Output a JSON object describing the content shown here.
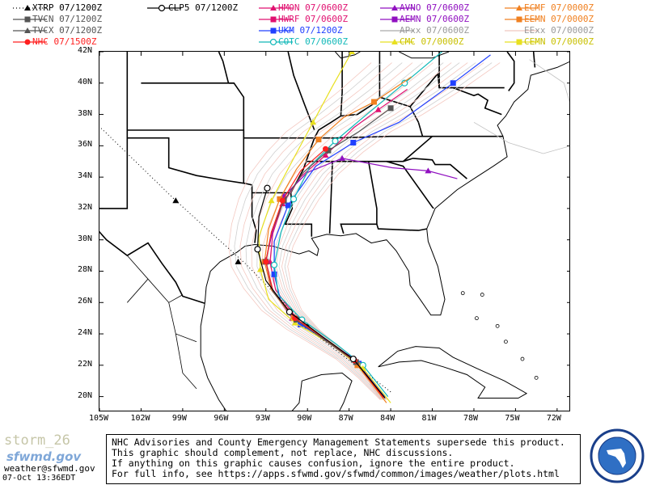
{
  "legend": [
    {
      "label": "XTRP 07/1200Z",
      "color": "#000000",
      "marker": "triangle",
      "line": "dotted"
    },
    {
      "label": "TVCN 07/1200Z",
      "color": "#555555",
      "marker": "square",
      "line": "solid"
    },
    {
      "label": "TVCX 07/1200Z",
      "color": "#555555",
      "marker": "triangle",
      "line": "solid"
    },
    {
      "label": "NHC 07/1500Z",
      "color": "#ff2020",
      "marker": "circle",
      "line": "solid"
    },
    {
      "label": "CLP5 07/1200Z",
      "color": "#000000",
      "marker": "circle-open",
      "line": "solid"
    },
    {
      "label": "HMON 07/0600Z",
      "color": "#e01070",
      "marker": "triangle",
      "line": "solid"
    },
    {
      "label": "HWRF 07/0600Z",
      "color": "#e01070",
      "marker": "square",
      "line": "solid"
    },
    {
      "label": "UKM 07/1200Z",
      "color": "#2040ff",
      "marker": "square",
      "line": "solid"
    },
    {
      "label": "COTC 07/0600Z",
      "color": "#10b8b8",
      "marker": "circle-open",
      "line": "solid"
    },
    {
      "label": "AVNO 07/0600Z",
      "color": "#9010c0",
      "marker": "triangle",
      "line": "solid"
    },
    {
      "label": "AEMN 07/0600Z",
      "color": "#9010c0",
      "marker": "square",
      "line": "solid"
    },
    {
      "label": "APxx 07/0600Z",
      "color": "#aaaaaa",
      "marker": "none",
      "line": "solid"
    },
    {
      "label": "CMC 07/0000Z",
      "color": "#e8e020",
      "marker": "triangle",
      "line": "solid"
    },
    {
      "label": "ECMF 07/0000Z",
      "color": "#f08020",
      "marker": "triangle",
      "line": "solid"
    },
    {
      "label": "EEMN 07/0000Z",
      "color": "#f08020",
      "marker": "square",
      "line": "solid"
    },
    {
      "label": "EExx 07/0000Z",
      "color": "#f0c8c0",
      "marker": "none",
      "line": "solid"
    },
    {
      "label": "CEMN 07/0000Z",
      "color": "#e8e020",
      "marker": "square",
      "line": "solid"
    }
  ],
  "map": {
    "lat_labels": [
      "42N",
      "40N",
      "38N",
      "36N",
      "34N",
      "32N",
      "30N",
      "28N",
      "26N",
      "24N",
      "22N",
      "20N"
    ],
    "lon_labels": [
      "105W",
      "102W",
      "99W",
      "96W",
      "93W",
      "90W",
      "87W",
      "84W",
      "81W",
      "78W",
      "75W",
      "72W"
    ],
    "lon_range": [
      -105,
      -71
    ],
    "lat_range": [
      19,
      42
    ]
  },
  "footer": {
    "storm": "storm_26",
    "brand": "sfwmd.gov",
    "email": "weather@sfwmd.gov",
    "timestamp": "07-Oct 13:36EDT",
    "notice": [
      "NHC Advisories and County Emergency Management Statements supersede this product.",
      "This graphic should complement, not replace, NHC discussions.",
      "If anything on this graphic causes confusion, ignore the entire product.",
      "For full info, see  https://apps.sfwmd.gov/sfwmd/common/images/weather/plots.html"
    ]
  }
}
